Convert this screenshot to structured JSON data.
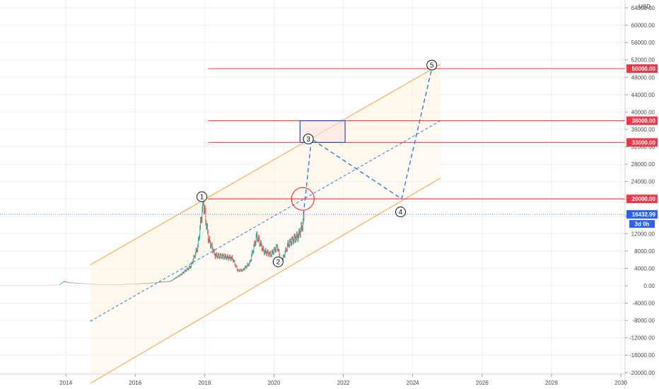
{
  "chart_data": {
    "type": "candlestick",
    "currency": "USD",
    "x_range": [
      2012.1,
      2030.0
    ],
    "y_range": [
      -20000,
      65000
    ],
    "x_ticks": [
      "2014",
      "2016",
      "2018",
      "2020",
      "2022",
      "2024",
      "2026",
      "2028",
      "2030"
    ],
    "y_ticks": [
      "-20000.00",
      "-16000.00",
      "-12000.00",
      "-8000.00",
      "-4000.00",
      "0.00",
      "4000.00",
      "8000.00",
      "12000.00",
      "16000.00",
      "20000.00",
      "24000.00",
      "28000.00",
      "32000.00",
      "36000.00",
      "40000.00",
      "44000.00",
      "48000.00",
      "52000.00",
      "56000.00",
      "60000.00",
      "64000.00"
    ],
    "last_price": {
      "value": 16432.99,
      "label": "16432.99",
      "color": "#2962ff"
    },
    "timeframe_label": "3d 0h",
    "price_series": {
      "x": [
        2012.1,
        2013.0,
        2013.8,
        2013.95,
        2014.1,
        2014.5,
        2015.0,
        2015.5,
        2016.0,
        2016.5,
        2017.0,
        2017.3,
        2017.6,
        2017.8,
        2017.96,
        2018.1,
        2018.3,
        2018.5,
        2018.8,
        2018.95,
        2019.1,
        2019.3,
        2019.5,
        2019.7,
        2019.9,
        2020.1,
        2020.2,
        2020.4,
        2020.6,
        2020.7,
        2020.8,
        2020.88
      ],
      "y": [
        10,
        15,
        200,
        1000,
        700,
        500,
        250,
        270,
        420,
        650,
        1000,
        2500,
        4500,
        9000,
        19500,
        11000,
        7000,
        6800,
        6300,
        3500,
        3600,
        5300,
        11500,
        8000,
        7200,
        9000,
        5000,
        9500,
        11000,
        11500,
        13500,
        16400
      ]
    },
    "channel": {
      "upper": {
        "x": [
          2014.7,
          2024.8
        ],
        "y": [
          4800,
          51000
        ],
        "color": "#f7a23b"
      },
      "middle": {
        "x": [
          2014.7,
          2024.8
        ],
        "y": [
          -8200,
          38000
        ],
        "color": "#2f7be6"
      },
      "lower": {
        "x": [
          2014.7,
          2024.8
        ],
        "y": [
          -22500,
          24800
        ],
        "color": "#f7a23b"
      }
    },
    "levels": [
      {
        "value": 50000,
        "label": "50000.00",
        "x_start": 2018.1
      },
      {
        "value": 38000,
        "label": "38000.00",
        "x_start": 2018.1
      },
      {
        "value": 33000,
        "label": "33000.00",
        "x_start": 2018.1
      },
      {
        "value": 20000,
        "label": "20000.00",
        "x_start": 2018.1
      }
    ],
    "level_color": "#f23645",
    "box": {
      "x": [
        2020.75,
        2022.05
      ],
      "y": [
        33000,
        38000
      ],
      "color": "#2b4fb5"
    },
    "circle_marker": {
      "x": 2020.83,
      "y": 20000,
      "color": "#f23645"
    },
    "projection": {
      "x": [
        2020.85,
        2021.08,
        2023.68,
        2024.55
      ],
      "y": [
        16400,
        33800,
        20000,
        50000
      ],
      "color": "#2f7be6"
    },
    "wave_labels": [
      {
        "label": "1",
        "x": 2017.92,
        "y": 20500
      },
      {
        "label": "2",
        "x": 2020.12,
        "y": 5500
      },
      {
        "label": "3",
        "x": 2020.99,
        "y": 33800
      },
      {
        "label": "4",
        "x": 2023.65,
        "y": 17000
      },
      {
        "label": "5",
        "x": 2024.55,
        "y": 50800
      }
    ]
  }
}
